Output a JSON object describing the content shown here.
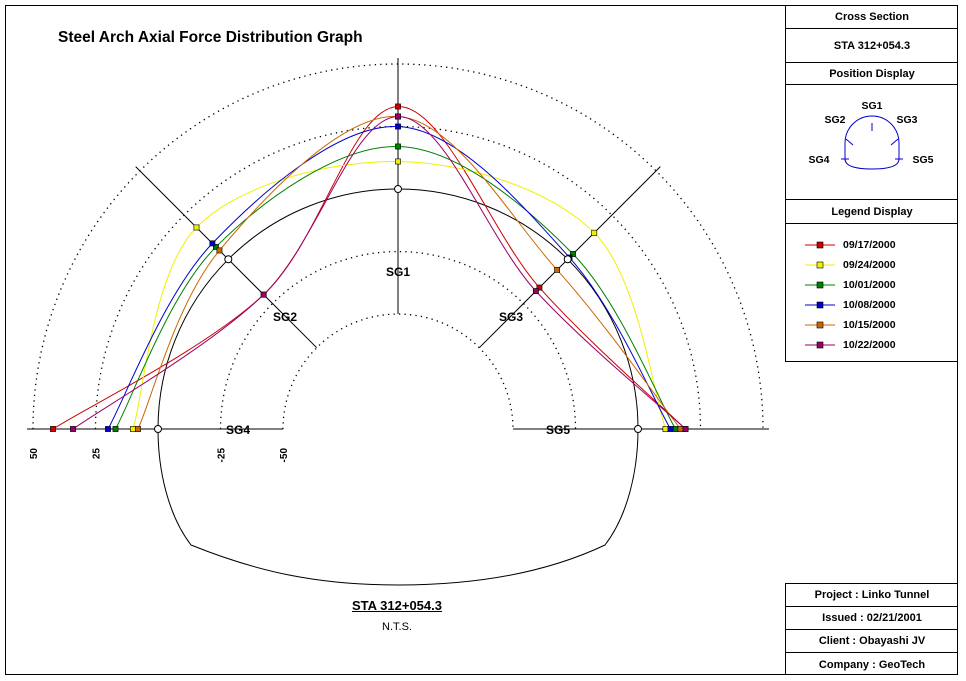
{
  "title": "Steel Arch Axial Force Distribution Graph",
  "footer": {
    "section": "STA 312+054.3",
    "scale_note": "N.T.S."
  },
  "panel": {
    "cross_section_header": "Cross Section",
    "cross_section_value": "STA 312+054.3",
    "position_header": "Position Display",
    "position_labels": [
      "SG1",
      "SG2",
      "SG3",
      "SG4",
      "SG5"
    ],
    "legend_header": "Legend Display"
  },
  "info": {
    "project": "Project : Linko Tunnel",
    "issued": "Issued : 02/21/2001",
    "client": "Client : Obayashi JV",
    "company": "Company : GeoTech"
  },
  "chart_data": {
    "type": "line",
    "title": "Steel Arch Axial Force Distribution Graph",
    "coordinate": "polar",
    "gauges": [
      "SG4",
      "SG2",
      "SG1",
      "SG3",
      "SG5"
    ],
    "gauge_angles_deg": [
      180,
      135,
      90,
      45,
      0
    ],
    "radial_ticks": [
      50,
      25,
      -25,
      -50
    ],
    "radial_range": [
      -50,
      50
    ],
    "series": [
      {
        "name": "09/17/2000",
        "color": "#cc0000",
        "values": [
          42,
          -20,
          33,
          -16,
          19
        ]
      },
      {
        "name": "09/24/2000",
        "color": "#f0f000",
        "values": [
          10,
          18,
          11,
          15,
          11
        ]
      },
      {
        "name": "10/01/2000",
        "color": "#008000",
        "values": [
          17,
          7,
          17,
          3,
          15
        ]
      },
      {
        "name": "10/08/2000",
        "color": "#0000cc",
        "values": [
          20,
          9,
          25,
          1,
          13
        ]
      },
      {
        "name": "10/15/2000",
        "color": "#cc6600",
        "values": [
          8,
          5,
          29,
          -6,
          17
        ]
      },
      {
        "name": "10/22/2000",
        "color": "#990066",
        "values": [
          34,
          -20,
          29,
          -18,
          19
        ]
      }
    ]
  }
}
